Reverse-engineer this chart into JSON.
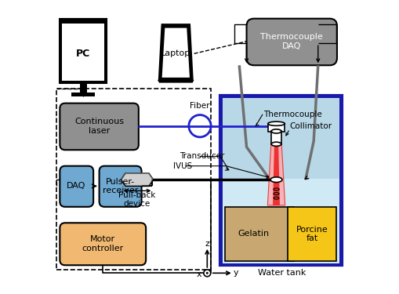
{
  "fig_width": 5.1,
  "fig_height": 3.75,
  "dpi": 100,
  "colors": {
    "gray_box": "#909090",
    "blue_box": "#6fa8d0",
    "orange_box": "#f0b870",
    "yellow_box": "#f5c518",
    "gelatin_box": "#c8a870",
    "water_bg": "#d0eaf5",
    "water_upper": "#b8d8e8",
    "tank_border": "#1a1aaa",
    "daq_gray": "#909090",
    "blue_line": "#2222cc",
    "red_beam": "#ee2222",
    "pink_beam": "#ffaaaa",
    "gray_wire": "#707070",
    "pullback_gray": "#b8b8b8",
    "collimator_fill": "#ffffff"
  },
  "labels": {
    "pc": "PC",
    "laptop": "Laptop",
    "tc_daq": "Thermocouple\nDAQ",
    "cont_laser": "Continuous\nlaser",
    "daq": "DAQ",
    "pulser": "Pulser-\nreceiver",
    "motor": "Motor\ncontroller",
    "fiber": "Fiber",
    "transducer": "Transducer",
    "ivus": "IVUS",
    "thermocouple": "Thermocouple",
    "collimator": "Collimator",
    "pullback": "Pull-back\ndevice",
    "gelatin": "Gelatin",
    "porcine": "Porcine\nfat",
    "water_tank": "Water tank",
    "z": "z",
    "x": "x",
    "y": "y"
  }
}
